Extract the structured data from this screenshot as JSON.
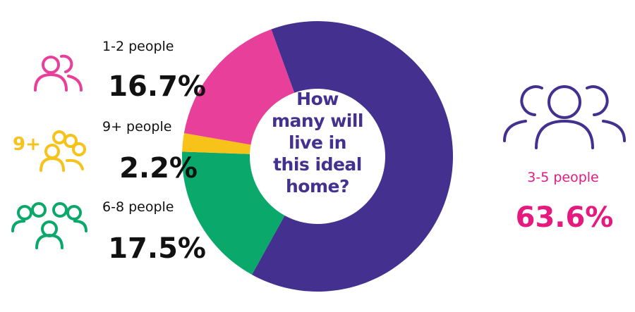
{
  "chart_data": {
    "type": "donut",
    "title": "How many will live in this ideal home?",
    "categories": [
      "3-5 people",
      "6-8 people",
      "9+ people",
      "1-2 people"
    ],
    "values": [
      63.6,
      17.5,
      2.2,
      16.7
    ],
    "value_labels": [
      "63.6%",
      "17.5%",
      "2.2%",
      "16.7%"
    ],
    "colors": [
      "#44318f",
      "#0aa86a",
      "#f7c21a",
      "#e8409a"
    ]
  }
}
